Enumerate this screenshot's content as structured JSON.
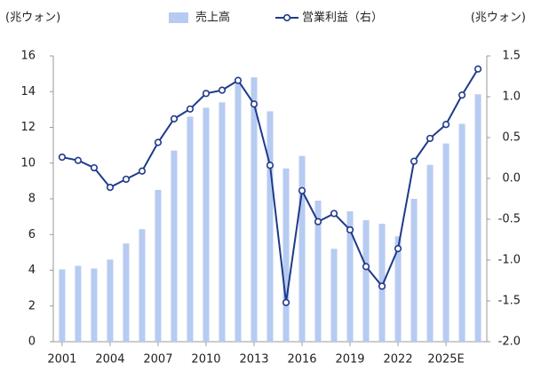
{
  "chart_data": {
    "type": "bar",
    "left_unit": "(兆ウォン)",
    "right_unit": "(兆ウォン)",
    "x": [
      2001,
      2002,
      2003,
      2004,
      2005,
      2006,
      2007,
      2008,
      2009,
      2010,
      2011,
      2012,
      2013,
      2014,
      2015,
      2016,
      2017,
      2018,
      2019,
      2020,
      2021,
      2022,
      2023,
      2024,
      2025,
      2026,
      2027
    ],
    "series": [
      {
        "name": "売上高",
        "type": "bar",
        "color": "#b7cbf2",
        "values": [
          4.05,
          4.25,
          4.1,
          4.6,
          5.5,
          6.3,
          8.5,
          10.7,
          12.6,
          13.1,
          13.4,
          14.5,
          14.8,
          12.9,
          9.7,
          10.4,
          7.9,
          5.2,
          7.3,
          6.8,
          6.6,
          5.9,
          8.0,
          9.9,
          11.1,
          12.2,
          13.85
        ]
      },
      {
        "name": "営業利益（右）",
        "type": "line",
        "axis": "y2",
        "color": "#1f3a8a",
        "values": [
          0.26,
          0.22,
          0.13,
          -0.11,
          -0.01,
          0.09,
          0.44,
          0.73,
          0.85,
          1.04,
          1.08,
          1.2,
          0.91,
          0.16,
          -1.52,
          -0.15,
          -0.53,
          -0.43,
          -0.63,
          -1.08,
          -1.32,
          -0.86,
          0.21,
          0.49,
          0.66,
          1.02,
          1.34
        ]
      }
    ],
    "xlim": [
      2000.45,
      2027.55
    ],
    "xticks": [
      2001,
      2004,
      2007,
      2010,
      2013,
      2016,
      2019,
      2022,
      {
        "value": 2025,
        "label": "2025E"
      }
    ],
    "ylim": [
      0,
      16
    ],
    "yticks": [
      0,
      2,
      4,
      6,
      8,
      10,
      12,
      14,
      16
    ],
    "y2lim": [
      -2,
      1.5
    ],
    "y2ticks": [
      1.5,
      {
        "value": 1,
        "label": "1.0"
      },
      0.5,
      {
        "value": 0,
        "label": "0.0"
      },
      -0.5,
      {
        "value": -1,
        "label": "-1.0"
      },
      -1.5,
      {
        "value": -2,
        "label": "-2.0"
      }
    ]
  }
}
